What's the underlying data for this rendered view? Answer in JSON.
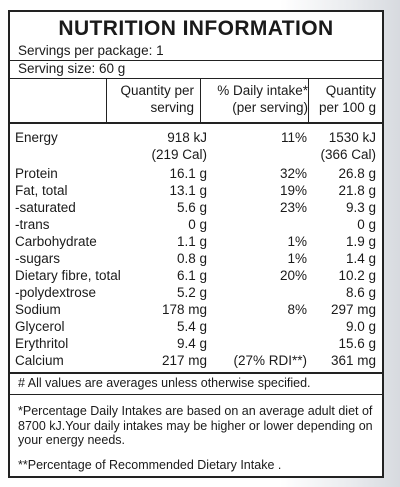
{
  "title": "NUTRITION INFORMATION",
  "servings_per_package": "Servings per package: 1",
  "serving_size": "Serving size: 60 g",
  "headers": {
    "per_serving_l1": "Quantity per",
    "per_serving_l2": "serving",
    "daily_l1": "% Daily intake*",
    "daily_l2": "(per serving)",
    "per100_l1": "Quantity",
    "per100_l2": "per 100 g"
  },
  "rows": [
    {
      "label": "Energy",
      "serving": "918 kJ",
      "daily": "11%",
      "per100": "1530 kJ"
    },
    {
      "label": "",
      "serving": "(219 Cal)",
      "daily": "",
      "per100": "(366 Cal)"
    },
    {
      "label": "Protein",
      "serving": "16.1 g",
      "daily": "32%",
      "per100": "26.8 g"
    },
    {
      "label": "Fat, total",
      "serving": "13.1 g",
      "daily": "19%",
      "per100": "21.8 g"
    },
    {
      "label": "-saturated",
      "serving": "5.6 g",
      "daily": "23%",
      "per100": "9.3 g"
    },
    {
      "label": "-trans",
      "serving": "0 g",
      "daily": "",
      "per100": "0 g"
    },
    {
      "label": "Carbohydrate",
      "serving": "1.1 g",
      "daily": "1%",
      "per100": "1.9 g"
    },
    {
      "label": "-sugars",
      "serving": "0.8 g",
      "daily": "1%",
      "per100": "1.4 g"
    },
    {
      "label": "Dietary fibre, total",
      "serving": "6.1 g",
      "daily": "20%",
      "per100": "10.2 g"
    },
    {
      "label": "-polydextrose",
      "serving": "5.2 g",
      "daily": "",
      "per100": "8.6 g"
    },
    {
      "label": "Sodium",
      "serving": "178 mg",
      "daily": "8%",
      "per100": "297 mg"
    },
    {
      "label": "Glycerol",
      "serving": "5.4 g",
      "daily": "",
      "per100": "9.0 g"
    },
    {
      "label": "Erythritol",
      "serving": "9.4 g",
      "daily": "",
      "per100": "15.6 g"
    },
    {
      "label": "Calcium",
      "serving": "217 mg",
      "daily": "(27% RDI**)",
      "per100": "361 mg"
    }
  ],
  "notes": {
    "averages": "# All values are averages unless otherwise specified.",
    "daily_intake": "*Percentage Daily Intakes are based on an average adult diet of 8700 kJ.Your daily intakes may be higher or lower depending on your energy needs.",
    "rdi": "**Percentage of Recommended Dietary Intake ."
  }
}
